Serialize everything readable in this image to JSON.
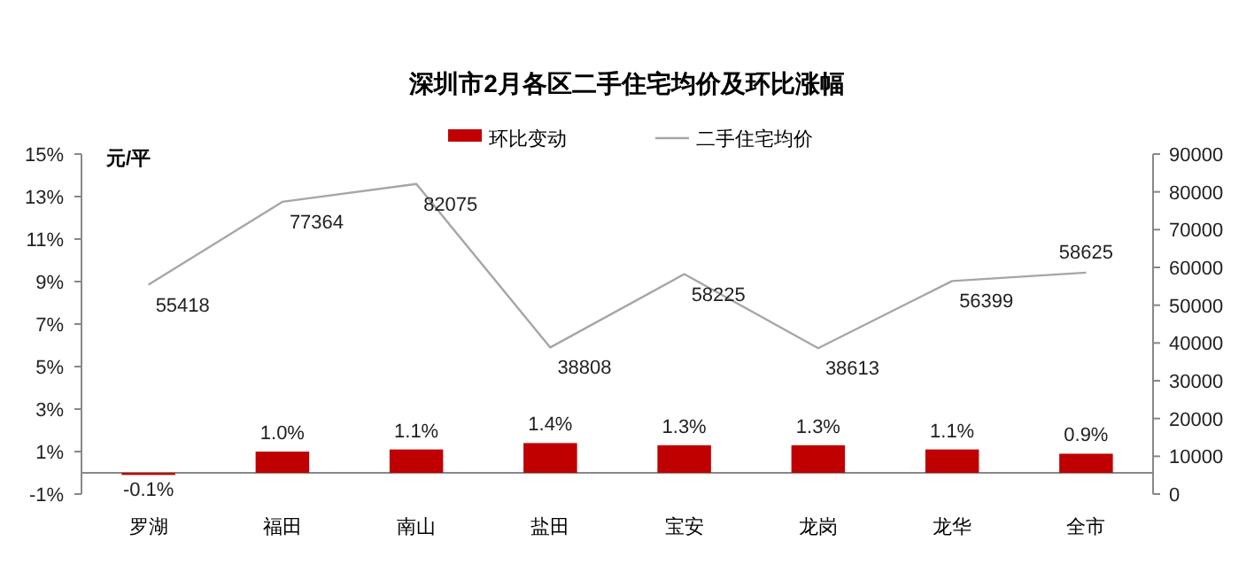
{
  "chart_data": {
    "type": "bar",
    "title": "深圳市2月各区二手住宅均价及环比涨幅",
    "categories": [
      "罗湖",
      "福田",
      "南山",
      "盐田",
      "宝安",
      "龙岗",
      "龙华",
      "全市"
    ],
    "series": [
      {
        "name": "环比变动",
        "color": "#c00000",
        "values": [
          -0.1,
          1.0,
          1.1,
          1.4,
          1.3,
          1.3,
          1.1,
          0.9
        ],
        "value_labels": [
          "-0.1%",
          "1.0%",
          "1.1%",
          "1.4%",
          "1.3%",
          "1.3%",
          "1.1%",
          "0.9%"
        ]
      },
      {
        "name": "二手住宅均价",
        "type": "line",
        "axis": "y2",
        "color": "#a6a6a6",
        "values": [
          55418,
          77364,
          82075,
          38808,
          58225,
          38613,
          56399,
          58625
        ],
        "value_labels": [
          "55418",
          "77364",
          "82075",
          "38808",
          "58225",
          "38613",
          "56399",
          "58625"
        ]
      }
    ],
    "ylim": [
      -1,
      15
    ],
    "yticks": [
      {
        "value": -1,
        "label": "-1%"
      },
      {
        "value": 1,
        "label": "1%"
      },
      {
        "value": 3,
        "label": "3%"
      },
      {
        "value": 5,
        "label": "5%"
      },
      {
        "value": 7,
        "label": "7%"
      },
      {
        "value": 9,
        "label": "9%"
      },
      {
        "value": 11,
        "label": "11%"
      },
      {
        "value": 13,
        "label": "13%"
      },
      {
        "value": 15,
        "label": "15%"
      }
    ],
    "y2lim": [
      0,
      90000
    ],
    "y2ticks": [
      0,
      10000,
      20000,
      30000,
      40000,
      50000,
      60000,
      70000,
      80000,
      90000
    ],
    "annotations": [
      "元/平"
    ],
    "legend": "top",
    "grid": false,
    "marker": "none",
    "line_style": "solid"
  }
}
